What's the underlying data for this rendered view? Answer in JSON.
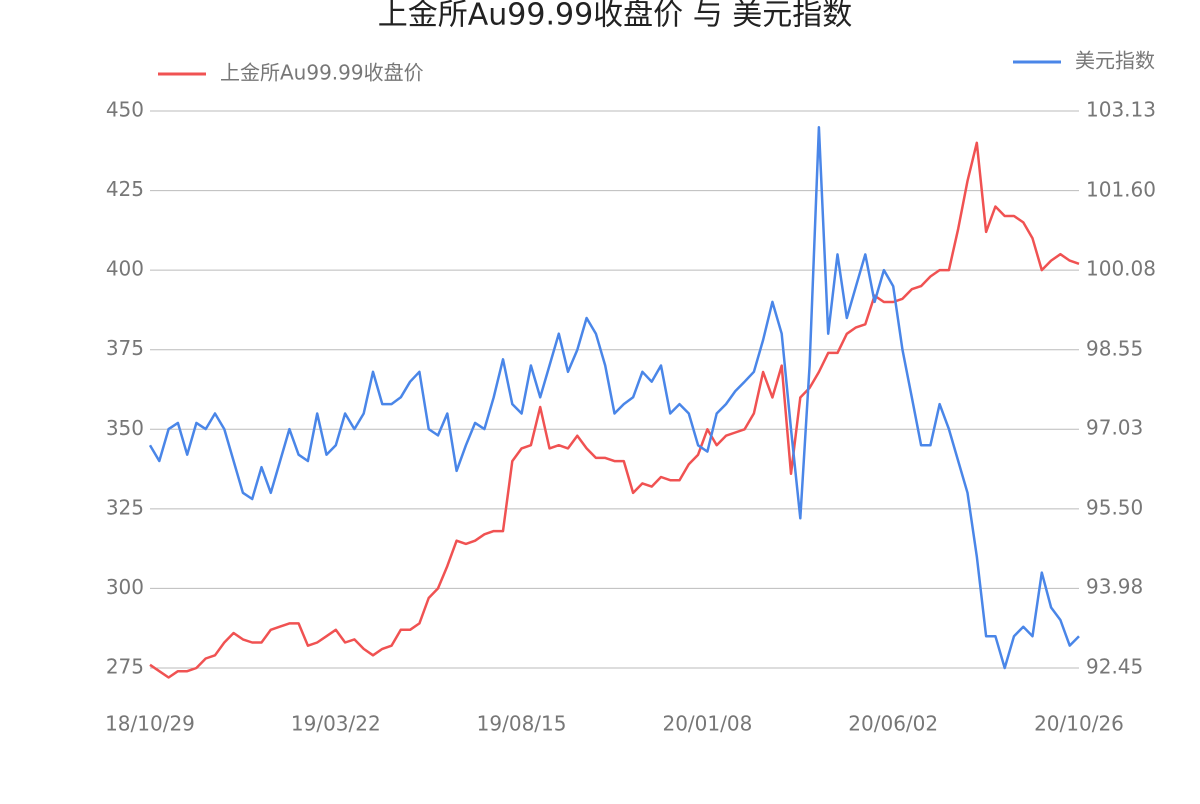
{
  "chart_data": {
    "type": "line",
    "title": "上金所Au99.99收盘价 与 美元指数",
    "categories": [
      "18/10/29",
      null,
      null,
      null,
      null,
      null,
      null,
      null,
      null,
      null,
      null,
      null,
      null,
      null,
      null,
      null,
      null,
      null,
      null,
      null,
      "19/03/22",
      null,
      null,
      null,
      null,
      null,
      null,
      null,
      null,
      null,
      null,
      null,
      null,
      null,
      null,
      null,
      null,
      null,
      null,
      null,
      "19/08/15",
      null,
      null,
      null,
      null,
      null,
      null,
      null,
      null,
      null,
      null,
      null,
      null,
      null,
      null,
      null,
      null,
      null,
      null,
      null,
      "20/01/08",
      null,
      null,
      null,
      null,
      null,
      null,
      null,
      null,
      null,
      null,
      null,
      null,
      null,
      null,
      null,
      null,
      null,
      null,
      null,
      "20/06/02",
      null,
      null,
      null,
      null,
      null,
      null,
      null,
      null,
      null,
      null,
      null,
      null,
      null,
      null,
      null,
      null,
      null,
      null,
      null,
      "20/10/26"
    ],
    "series": [
      {
        "name": "上金所Au99.99收盘价",
        "color": "#f05252",
        "axis": "y",
        "values": [
          276,
          274,
          272,
          274,
          274,
          275,
          278,
          279,
          283,
          286,
          284,
          283,
          283,
          287,
          288,
          289,
          289,
          282,
          283,
          285,
          287,
          283,
          284,
          281,
          279,
          281,
          282,
          287,
          287,
          289,
          297,
          300,
          307,
          315,
          314,
          315,
          317,
          318,
          318,
          340,
          344,
          345,
          357,
          344,
          345,
          344,
          348,
          344,
          341,
          341,
          340,
          340,
          330,
          333,
          332,
          335,
          334,
          334,
          339,
          342,
          350,
          345,
          348,
          349,
          350,
          355,
          368,
          360,
          370,
          336,
          360,
          363,
          368,
          374,
          374,
          380,
          382,
          383,
          392,
          390,
          390,
          391,
          394,
          395,
          398,
          400,
          400,
          413,
          428,
          440,
          412,
          420,
          417,
          417,
          415,
          410,
          400,
          403,
          405,
          403,
          402
        ]
      },
      {
        "name": "美元指数",
        "color": "#4a86e8",
        "axis": "y2",
        "values": [
          96.72,
          96.42,
          97.03,
          97.15,
          96.54,
          97.15,
          97.03,
          97.33,
          97.03,
          96.42,
          95.81,
          95.69,
          96.3,
          95.81,
          96.42,
          97.03,
          96.54,
          96.42,
          97.33,
          96.54,
          96.72,
          97.33,
          97.03,
          97.33,
          98.13,
          97.51,
          97.51,
          97.64,
          97.94,
          98.13,
          97.03,
          96.91,
          97.33,
          96.23,
          96.72,
          97.15,
          97.03,
          97.64,
          98.37,
          97.51,
          97.33,
          98.25,
          97.64,
          98.25,
          98.86,
          98.13,
          98.55,
          99.16,
          98.86,
          98.25,
          97.33,
          97.51,
          97.64,
          98.13,
          97.94,
          98.25,
          97.33,
          97.51,
          97.33,
          96.72,
          96.6,
          97.33,
          97.51,
          97.76,
          97.94,
          98.13,
          98.74,
          99.47,
          98.86,
          97.03,
          95.32,
          98.25,
          102.82,
          98.86,
          100.38,
          99.16,
          99.77,
          100.38,
          99.47,
          100.08,
          99.77,
          98.55,
          97.64,
          96.72,
          96.72,
          97.51,
          97.03,
          96.42,
          95.81,
          94.59,
          93.06,
          93.06,
          92.45,
          93.06,
          93.24,
          93.06,
          94.28,
          93.61,
          93.37,
          92.88,
          93.06
        ]
      }
    ],
    "ylim": [
      275,
      450
    ],
    "yticks": [
      275,
      300,
      325,
      350,
      375,
      400,
      425,
      450
    ],
    "y2lim": [
      92.45,
      103.13
    ],
    "y2ticks": [
      92.45,
      93.98,
      {
        "value": 95.5,
        "label": "95.50"
      },
      97.03,
      98.55,
      100.08,
      {
        "value": 101.6,
        "label": "101.60"
      },
      103.13
    ],
    "grid": true
  }
}
